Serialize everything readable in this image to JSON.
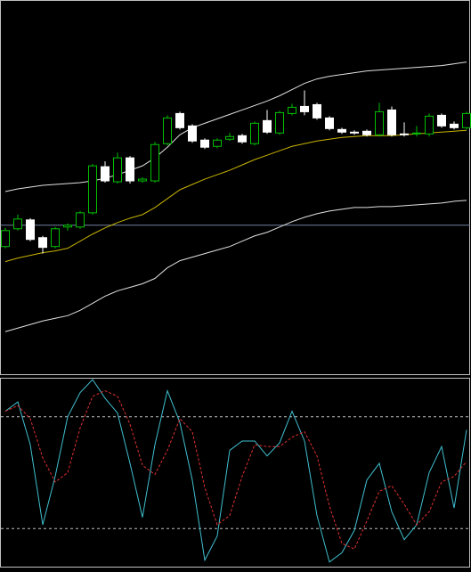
{
  "chart_data": [
    {
      "type": "candlestick",
      "open": [
        144,
        164,
        174,
        154,
        144,
        166,
        166,
        182,
        234,
        217,
        244,
        218,
        218,
        260,
        294,
        280,
        264,
        257,
        265,
        269,
        260,
        286,
        272,
        294,
        302,
        304,
        289,
        276,
        273,
        274,
        270,
        298,
        271,
        272,
        271,
        292,
        282,
        278
      ],
      "high": [
        165,
        180,
        176,
        156,
        166,
        170,
        184,
        237,
        240,
        250,
        246,
        222,
        262,
        292,
        296,
        282,
        266,
        266,
        272,
        271,
        285,
        298,
        297,
        305,
        320,
        306,
        291,
        278,
        275,
        276,
        306,
        302,
        284,
        280,
        294,
        294,
        285,
        296
      ],
      "low": [
        142,
        162,
        150,
        136,
        142,
        162,
        164,
        180,
        216,
        215,
        215,
        216,
        216,
        258,
        276,
        261,
        254,
        255,
        263,
        260,
        258,
        271,
        270,
        292,
        292,
        287,
        275,
        271,
        270,
        268,
        268,
        268,
        268,
        268,
        268,
        278,
        276,
        276
      ],
      "close": [
        162,
        175,
        152,
        143,
        164,
        168,
        182,
        235,
        218,
        244,
        218,
        220,
        259,
        289,
        278,
        263,
        256,
        264,
        268,
        262,
        283,
        273,
        295,
        301,
        296,
        289,
        277,
        273,
        272,
        270,
        296,
        270,
        270,
        272,
        291,
        280,
        278,
        294
      ],
      "up_color": "#00c000",
      "down_color": "#ffffff",
      "series": [
        {
          "color": "#e0e0e0",
          "values": [
            206,
            209,
            211,
            213,
            214,
            215,
            216,
            218,
            221,
            225,
            230,
            235,
            244,
            256,
            270,
            278,
            283,
            288,
            293,
            298,
            303,
            308,
            314,
            321,
            328,
            333,
            336,
            338,
            340,
            342,
            343,
            344,
            345,
            346,
            347,
            348,
            350,
            352
          ]
        },
        {
          "color": "#c8b400",
          "values": [
            127,
            131,
            134,
            137,
            139,
            142,
            150,
            158,
            165,
            171,
            176,
            180,
            188,
            198,
            208,
            214,
            220,
            225,
            230,
            236,
            242,
            247,
            252,
            257,
            260,
            263,
            265,
            267,
            268,
            269,
            269,
            269,
            270,
            271,
            272,
            273,
            274,
            275
          ]
        },
        {
          "color": "#e0e0e0",
          "values": [
            48,
            52,
            56,
            60,
            63,
            66,
            72,
            80,
            88,
            94,
            98,
            102,
            108,
            120,
            128,
            132,
            136,
            140,
            144,
            150,
            156,
            160,
            166,
            172,
            177,
            181,
            184,
            186,
            188,
            188,
            189,
            189,
            190,
            191,
            192,
            193,
            195,
            196
          ]
        }
      ],
      "hline": 168,
      "hline_color": "#7080a0",
      "ylim": [
        0,
        420
      ]
    },
    {
      "type": "line",
      "series": [
        {
          "color": "#40c0d0",
          "dash": false,
          "values": [
            83,
            88,
            65,
            22,
            48,
            80,
            93,
            100,
            90,
            82,
            55,
            26,
            65,
            94,
            77,
            46,
            3,
            16,
            62,
            67,
            67,
            59,
            66,
            83,
            67,
            27,
            2,
            7,
            19,
            46,
            55,
            29,
            14,
            22,
            50,
            64,
            31,
            73
          ]
        },
        {
          "color": "#e03030",
          "dash": true,
          "values": [
            83,
            86,
            79,
            58,
            45,
            50,
            74,
            91,
            94,
            91,
            76,
            54,
            49,
            62,
            79,
            72,
            42,
            22,
            27,
            48,
            65,
            64,
            64,
            69,
            72,
            59,
            32,
            12,
            9,
            24,
            40,
            43,
            33,
            22,
            29,
            45,
            48,
            56
          ]
        }
      ],
      "levels": [
        20,
        80
      ],
      "ylim": [
        0,
        100
      ]
    }
  ]
}
